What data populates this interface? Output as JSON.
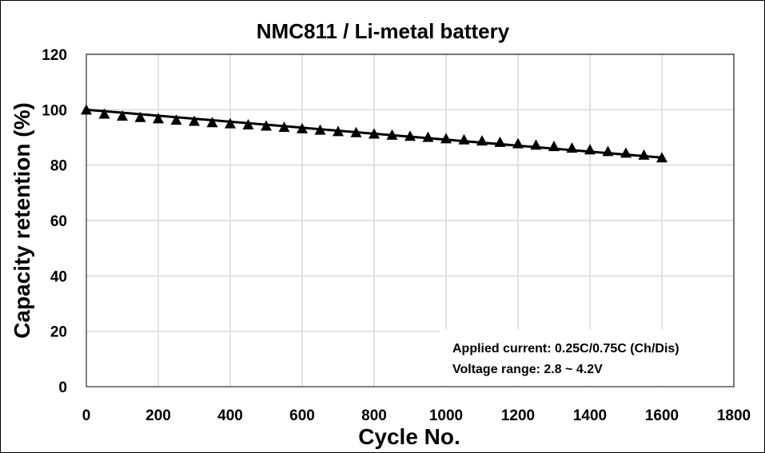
{
  "chart_data": {
    "type": "line",
    "title": "NMC811 / Li-metal battery",
    "xlabel": "Cycle No.",
    "ylabel": "Capacity retention (%)",
    "xlim": [
      0,
      1800
    ],
    "ylim": [
      0,
      120
    ],
    "xticks": [
      0,
      200,
      400,
      600,
      800,
      1000,
      1200,
      1400,
      1600,
      1800
    ],
    "yticks": [
      0,
      20,
      40,
      60,
      80,
      100,
      120
    ],
    "grid": true,
    "series": [
      {
        "name": "Capacity retention",
        "marker": "triangle",
        "color": "#000000",
        "x": [
          0,
          50,
          100,
          150,
          200,
          250,
          300,
          350,
          400,
          450,
          500,
          550,
          600,
          650,
          700,
          750,
          800,
          850,
          900,
          950,
          1000,
          1050,
          1100,
          1150,
          1200,
          1250,
          1300,
          1350,
          1400,
          1450,
          1500,
          1550,
          1600
        ],
        "y": [
          100,
          98.5,
          97.8,
          97.3,
          96.8,
          96.3,
          95.9,
          95.4,
          95.0,
          94.6,
          94.2,
          93.7,
          93.2,
          92.7,
          92.2,
          91.8,
          91.3,
          90.9,
          90.5,
          90.1,
          89.6,
          89.2,
          88.8,
          88.3,
          87.8,
          87.3,
          86.8,
          86.2,
          85.6,
          85.0,
          84.4,
          83.7,
          82.7
        ]
      }
    ],
    "fit_line": {
      "x": [
        0,
        1600
      ],
      "y": [
        100,
        82.7
      ]
    },
    "annotations": [
      "Applied current: 0.25C/0.75C (Ch/Dis)",
      "Voltage range: 2.8 ~ 4.2V"
    ]
  }
}
